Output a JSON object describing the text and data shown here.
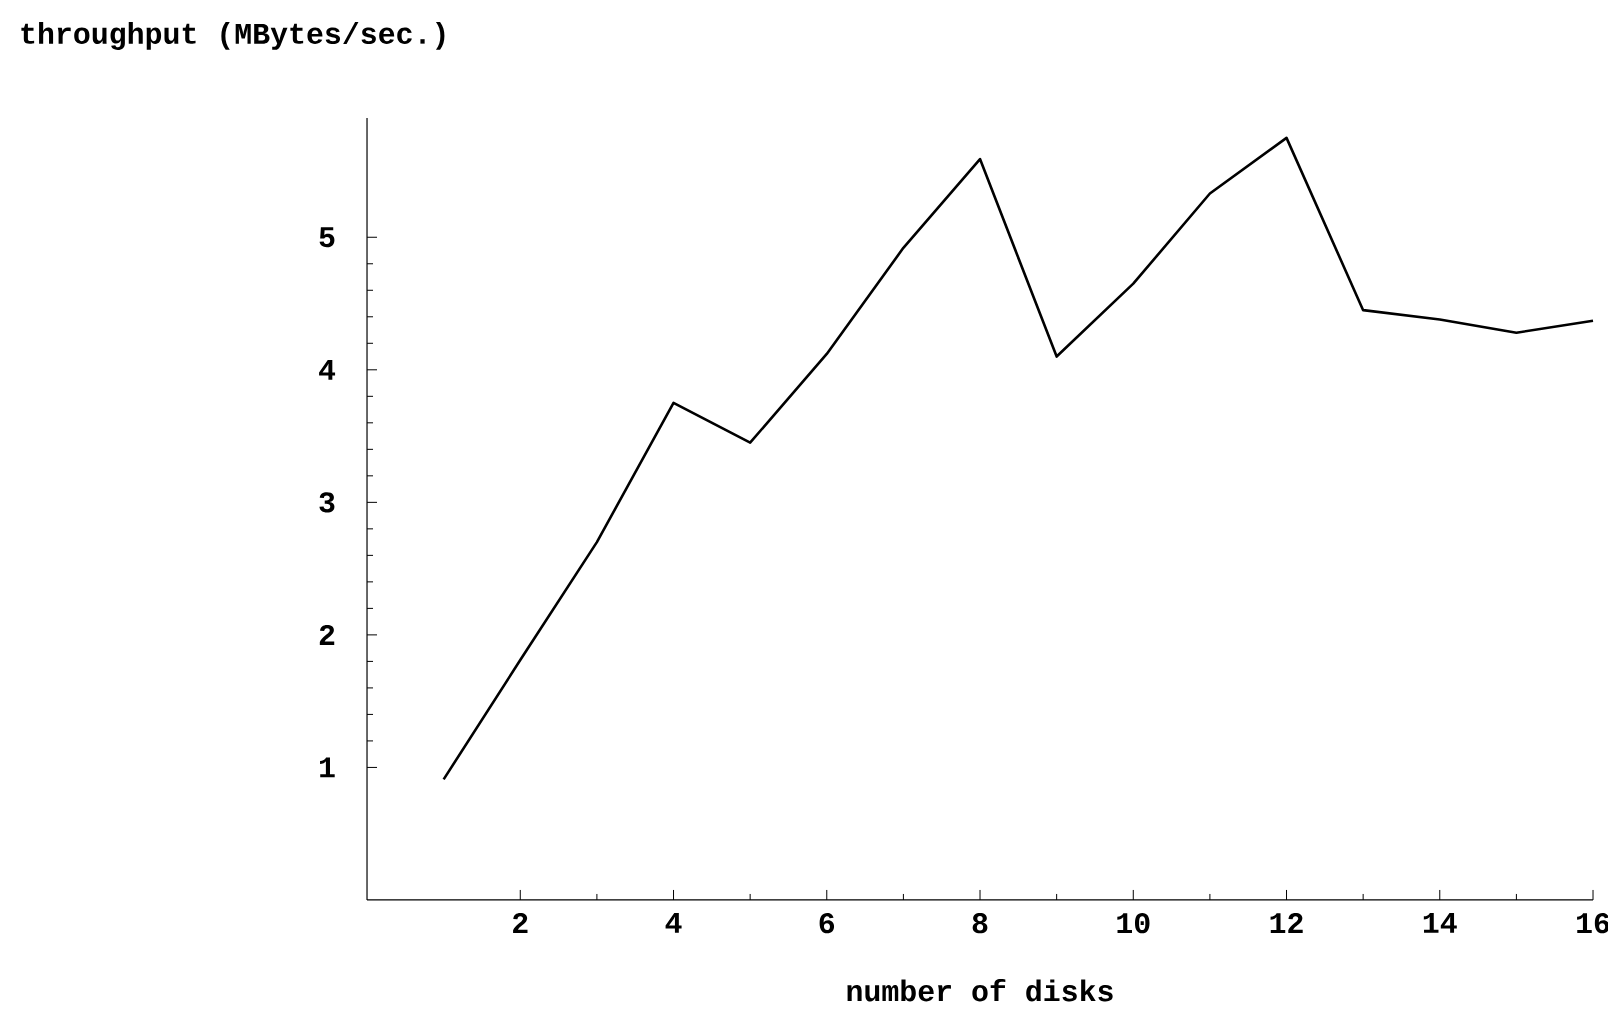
{
  "chart_data": {
    "type": "line",
    "xlabel": "number of disks",
    "ylabel": "throughput (MBytes/sec.)",
    "x": [
      1,
      2,
      3,
      4,
      5,
      6,
      7,
      8,
      9,
      10,
      11,
      12,
      13,
      14,
      15,
      16
    ],
    "series": [
      {
        "color": "#000000",
        "values": [
          0.91,
          1.81,
          2.7,
          3.75,
          3.45,
          4.12,
          4.92,
          5.59,
          4.1,
          4.65,
          5.33,
          5.75,
          4.45,
          4.38,
          4.28,
          4.37
        ]
      }
    ],
    "xlim": [
      0,
      16
    ],
    "ylim": [
      0,
      5.9
    ],
    "xticks": [
      2,
      4,
      6,
      8,
      10,
      12,
      14,
      16
    ],
    "yticks": [
      1,
      2,
      3,
      4,
      5
    ],
    "marker": "none",
    "line_style": "solid"
  }
}
